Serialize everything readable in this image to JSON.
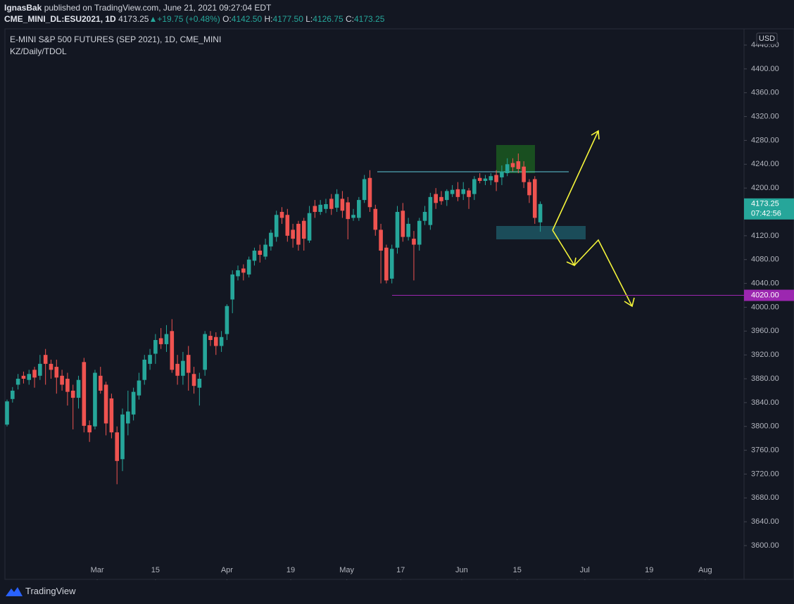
{
  "header": {
    "author": "IgnasBak",
    "published": "published on TradingView.com, June 21, 2021 09:27:04 EDT",
    "symbol": "CME_MINI_DL:ESU2021, 1D",
    "price": "4173.25",
    "arrow": "▲",
    "change": "+19.75 (+0.48%)",
    "o_label": "O:",
    "o": "4142.50",
    "h_label": "H:",
    "h": "4177.50",
    "l_label": "L:",
    "l": "4126.75",
    "c_label": "C:",
    "c": "4173.25"
  },
  "chart_data": {
    "type": "candlestick",
    "title": "E-MINI S&P 500 FUTURES (SEP 2021), 1D, CME_MINI",
    "subtitle": "KZ/Daily/TDOL",
    "currency": "USD",
    "up_color": "#26a69a",
    "down_color": "#ef5350",
    "open": [
      3803,
      3846,
      3870,
      3885,
      3878,
      3895,
      3885,
      3920,
      3905,
      3900,
      3885,
      3880,
      3860,
      3848,
      3908,
      3802,
      3800,
      3885,
      3870,
      3847,
      3790,
      3745,
      3805,
      3820,
      3852,
      3878,
      3905,
      3922,
      3948,
      3938,
      3960,
      3905,
      3885,
      3920,
      3888,
      3865,
      3895,
      3952,
      3950,
      3935,
      3955,
      4013,
      4052,
      4065,
      4055,
      4078,
      4095,
      4085,
      4102,
      4118,
      4160,
      4155,
      4130,
      4140,
      4145,
      4112,
      4170,
      4160,
      4165,
      4182,
      4167,
      4182,
      4176,
      4150,
      4150,
      4180,
      4217,
      4165,
      4130,
      4100,
      4048,
      4100,
      4162,
      4118,
      4115,
      4105,
      4145,
      4138,
      4190,
      4185,
      4180,
      4190,
      4198,
      4190,
      4196,
      4190,
      4217,
      4212,
      4213,
      4222,
      4218,
      4225,
      4242,
      4245,
      4236,
      4210,
      4215,
      4142.5
    ],
    "high": [
      3845,
      3866,
      3888,
      3892,
      3895,
      3900,
      3920,
      3930,
      3912,
      3912,
      3895,
      3890,
      3870,
      3885,
      3915,
      3810,
      3895,
      3900,
      3875,
      3855,
      3800,
      3830,
      3860,
      3865,
      3890,
      3920,
      3930,
      3955,
      3965,
      3970,
      3980,
      3920,
      3925,
      3935,
      3900,
      3890,
      3960,
      3960,
      3958,
      3960,
      4005,
      4062,
      4070,
      4072,
      4085,
      4100,
      4105,
      4115,
      4130,
      4162,
      4168,
      4165,
      4140,
      4145,
      4150,
      4170,
      4180,
      4180,
      4182,
      4190,
      4198,
      4195,
      4185,
      4165,
      4185,
      4222,
      4230,
      4172,
      4140,
      4105,
      4105,
      4170,
      4175,
      4150,
      4128,
      4150,
      4170,
      4192,
      4200,
      4195,
      4198,
      4205,
      4210,
      4210,
      4200,
      4220,
      4225,
      4222,
      4225,
      4230,
      4238,
      4250,
      4250,
      4258,
      4245,
      4215,
      4220,
      4177.5
    ],
    "low": [
      3800,
      3840,
      3862,
      3872,
      3870,
      3865,
      3878,
      3870,
      3880,
      3855,
      3860,
      3835,
      3795,
      3830,
      3790,
      3774,
      3795,
      3855,
      3785,
      3780,
      3703,
      3725,
      3785,
      3810,
      3845,
      3870,
      3895,
      3905,
      3930,
      3925,
      3890,
      3870,
      3870,
      3860,
      3855,
      3835,
      3885,
      3935,
      3920,
      3925,
      3945,
      3990,
      4045,
      4045,
      4050,
      4070,
      4075,
      4080,
      4095,
      4110,
      4140,
      4110,
      4100,
      4095,
      4095,
      4108,
      4150,
      4155,
      4158,
      4155,
      4160,
      4150,
      4114,
      4145,
      4145,
      4175,
      4160,
      4120,
      4040,
      4040,
      4040,
      4090,
      4110,
      4112,
      4045,
      4095,
      4138,
      4130,
      4165,
      4172,
      4170,
      4185,
      4178,
      4180,
      4165,
      4180,
      4208,
      4205,
      4205,
      4195,
      4205,
      4220,
      4228,
      4225,
      4200,
      4175,
      4140,
      4126.75
    ],
    "close": [
      3842,
      3860,
      3880,
      3880,
      3888,
      3882,
      3905,
      3905,
      3895,
      3882,
      3870,
      3858,
      3848,
      3878,
      3801,
      3790,
      3890,
      3860,
      3805,
      3790,
      3742,
      3820,
      3825,
      3858,
      3877,
      3912,
      3920,
      3945,
      3938,
      3955,
      3895,
      3885,
      3910,
      3890,
      3868,
      3880,
      3955,
      3945,
      3935,
      3950,
      4002,
      4055,
      4062,
      4058,
      4080,
      4095,
      4088,
      4105,
      4125,
      4155,
      4150,
      4120,
      4115,
      4105,
      4115,
      4158,
      4160,
      4172,
      4173,
      4165,
      4190,
      4162,
      4148,
      4155,
      4180,
      4215,
      4168,
      4130,
      4095,
      4045,
      4098,
      4160,
      4118,
      4140,
      4105,
      4145,
      4160,
      4185,
      4175,
      4178,
      4195,
      4197,
      4185,
      4198,
      4185,
      4215,
      4212,
      4216,
      4220,
      4210,
      4228,
      4240,
      4235,
      4232,
      4210,
      4188,
      4150,
      4173.25
    ],
    "ylim": [
      3544.5,
      4466
    ],
    "yticks": [
      {
        "value": 3600,
        "label": "3600.00"
      },
      {
        "value": 3640,
        "label": "3640.00"
      },
      {
        "value": 3680,
        "label": "3680.00"
      },
      {
        "value": 3720,
        "label": "3720.00"
      },
      {
        "value": 3760,
        "label": "3760.00"
      },
      {
        "value": 3800,
        "label": "3800.00"
      },
      {
        "value": 3840,
        "label": "3840.00"
      },
      {
        "value": 3880,
        "label": "3880.00"
      },
      {
        "value": 3920,
        "label": "3920.00"
      },
      {
        "value": 3960,
        "label": "3960.00"
      },
      {
        "value": 4000,
        "label": "4000.00"
      },
      {
        "value": 4040,
        "label": "4040.00"
      },
      {
        "value": 4080,
        "label": "4080.00"
      },
      {
        "value": 4120,
        "label": "4120.00"
      },
      {
        "value": 4160,
        "label": "4160.00"
      },
      {
        "value": 4200,
        "label": "4200.00"
      },
      {
        "value": 4240,
        "label": "4240.00"
      },
      {
        "value": 4280,
        "label": "4280.00"
      },
      {
        "value": 4320,
        "label": "4320.00"
      },
      {
        "value": 4360,
        "label": "4360.00"
      },
      {
        "value": 4400,
        "label": "4400.00"
      },
      {
        "value": 4440,
        "label": "4440.00"
      }
    ],
    "xticks": [
      {
        "value": 16.4,
        "label": "Mar"
      },
      {
        "value": 27,
        "label": "15"
      },
      {
        "value": 40,
        "label": "Apr"
      },
      {
        "value": 51.6,
        "label": "19"
      },
      {
        "value": 61.8,
        "label": "May"
      },
      {
        "value": 71.6,
        "label": "17"
      },
      {
        "value": 82.7,
        "label": "Jun"
      },
      {
        "value": 92.8,
        "label": "15"
      },
      {
        "value": 105.1,
        "label": "Jul"
      },
      {
        "value": 116.8,
        "label": "19"
      },
      {
        "value": 127,
        "label": "Aug"
      }
    ],
    "last_price": {
      "value": 4173.25,
      "label": "4173.25"
    },
    "countdown": "07:42:56",
    "level": {
      "value": 4020,
      "label": "4020.00"
    },
    "level_color": "#9c27b0"
  },
  "footer": {
    "brand": "TradingView"
  }
}
